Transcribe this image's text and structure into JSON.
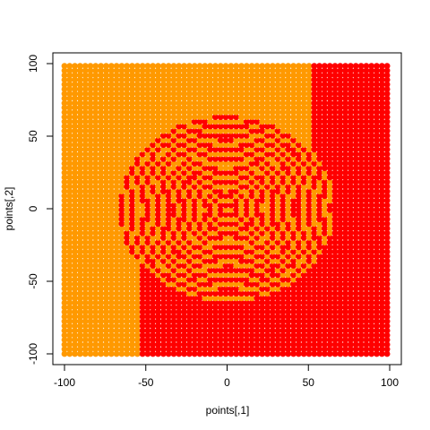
{
  "chart_data": {
    "type": "scatter",
    "title": "",
    "xlabel": "points[,1]",
    "ylabel": "points[,2]",
    "xlim": [
      -100,
      100
    ],
    "ylim": [
      -100,
      100
    ],
    "x_ticks": [
      -100,
      -50,
      0,
      50,
      100
    ],
    "y_ticks": [
      -100,
      -50,
      0,
      50,
      100
    ],
    "x_tick_labels": [
      "-100",
      "-50",
      "0",
      "50",
      "100"
    ],
    "y_tick_labels": [
      "-100",
      "-50",
      "0",
      "50",
      "100"
    ],
    "grid": false,
    "legend": "none",
    "colors": {
      "class_a": "#FF9900",
      "class_b": "#FF0000"
    },
    "regions": [
      {
        "color": "class_a",
        "x_range": [
          -100,
          52
        ],
        "y_range": [
          -100,
          100
        ],
        "note": "upper-left background region"
      },
      {
        "color": "class_b",
        "x_range": [
          52,
          100
        ],
        "y_range": [
          -100,
          100
        ]
      },
      {
        "color": "class_b",
        "x_range": [
          -54,
          100
        ],
        "y_range": [
          -100,
          -37
        ]
      }
    ],
    "spiral": {
      "center": [
        0,
        0
      ],
      "radius_x": 66,
      "radius_y": 65,
      "turns": 12,
      "colors": [
        "class_b",
        "class_a"
      ]
    }
  }
}
